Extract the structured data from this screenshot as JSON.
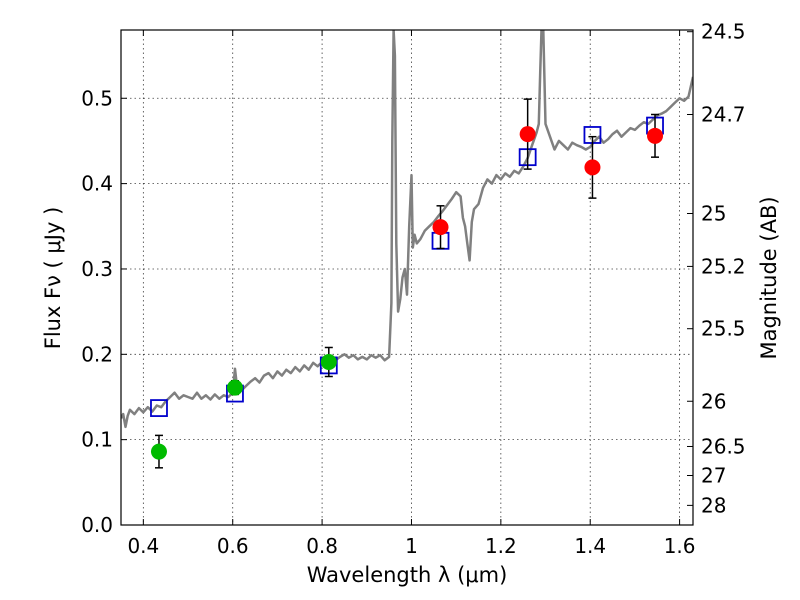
{
  "chart_data": {
    "type": "scatter",
    "xlabel": "Wavelength  λ (μm)",
    "ylabel": "Flux  Fν  ( μJy )",
    "ylabel_right": "Magnitude (AB)",
    "xlim": [
      0.35,
      1.63
    ],
    "ylim": [
      0.0,
      0.58
    ],
    "x_ticks": [
      0.4,
      0.6,
      0.8,
      1.0,
      1.2,
      1.4,
      1.6
    ],
    "x_tick_labels": [
      "0.4",
      "0.6",
      "0.8",
      "1",
      "1.2",
      "1.4",
      "1.6"
    ],
    "y_ticks": [
      0.0,
      0.1,
      0.2,
      0.3,
      0.4,
      0.5
    ],
    "y_tick_labels": [
      "0.0",
      "0.1",
      "0.2",
      "0.3",
      "0.4",
      "0.5"
    ],
    "right_ticks": [
      {
        "label": "24.5",
        "flux": 0.578
      },
      {
        "label": "24.7",
        "flux": 0.481
      },
      {
        "label": "25",
        "flux": 0.365
      },
      {
        "label": "25.2",
        "flux": 0.303
      },
      {
        "label": "25.5",
        "flux": 0.23
      },
      {
        "label": "26",
        "flux": 0.145
      },
      {
        "label": "26.5",
        "flux": 0.092
      },
      {
        "label": "27",
        "flux": 0.058
      },
      {
        "label": "28",
        "flux": 0.023
      }
    ],
    "grid": true,
    "colors": {
      "spectrum": "#808080",
      "green_points": "#00bb00",
      "red_points": "#ff0000",
      "model_boxes": "#0000cc",
      "errorbars": "#000000"
    },
    "series": [
      {
        "kind": "line",
        "points": [
          [
            0.35,
            0.125
          ],
          [
            0.355,
            0.13
          ],
          [
            0.36,
            0.115
          ],
          [
            0.365,
            0.128
          ],
          [
            0.37,
            0.135
          ],
          [
            0.38,
            0.13
          ],
          [
            0.39,
            0.137
          ],
          [
            0.4,
            0.132
          ],
          [
            0.41,
            0.138
          ],
          [
            0.42,
            0.133
          ],
          [
            0.43,
            0.14
          ],
          [
            0.44,
            0.138
          ],
          [
            0.45,
            0.145
          ],
          [
            0.46,
            0.15
          ],
          [
            0.47,
            0.155
          ],
          [
            0.48,
            0.148
          ],
          [
            0.49,
            0.152
          ],
          [
            0.5,
            0.15
          ],
          [
            0.51,
            0.148
          ],
          [
            0.52,
            0.155
          ],
          [
            0.53,
            0.148
          ],
          [
            0.54,
            0.152
          ],
          [
            0.55,
            0.147
          ],
          [
            0.56,
            0.153
          ],
          [
            0.57,
            0.148
          ],
          [
            0.58,
            0.152
          ],
          [
            0.59,
            0.15
          ],
          [
            0.6,
            0.155
          ],
          [
            0.605,
            0.183
          ],
          [
            0.61,
            0.16
          ],
          [
            0.62,
            0.158
          ],
          [
            0.63,
            0.163
          ],
          [
            0.64,
            0.168
          ],
          [
            0.65,
            0.172
          ],
          [
            0.66,
            0.167
          ],
          [
            0.67,
            0.175
          ],
          [
            0.68,
            0.178
          ],
          [
            0.69,
            0.172
          ],
          [
            0.7,
            0.18
          ],
          [
            0.71,
            0.175
          ],
          [
            0.72,
            0.182
          ],
          [
            0.73,
            0.178
          ],
          [
            0.74,
            0.185
          ],
          [
            0.75,
            0.18
          ],
          [
            0.76,
            0.187
          ],
          [
            0.77,
            0.182
          ],
          [
            0.78,
            0.19
          ],
          [
            0.79,
            0.186
          ],
          [
            0.8,
            0.191
          ],
          [
            0.81,
            0.193
          ],
          [
            0.82,
            0.196
          ],
          [
            0.83,
            0.193
          ],
          [
            0.84,
            0.197
          ],
          [
            0.85,
            0.2
          ],
          [
            0.86,
            0.196
          ],
          [
            0.87,
            0.199
          ],
          [
            0.88,
            0.194
          ],
          [
            0.89,
            0.197
          ],
          [
            0.9,
            0.194
          ],
          [
            0.91,
            0.199
          ],
          [
            0.92,
            0.196
          ],
          [
            0.93,
            0.199
          ],
          [
            0.94,
            0.193
          ],
          [
            0.95,
            0.197
          ],
          [
            0.955,
            0.26
          ],
          [
            0.957,
            0.45
          ],
          [
            0.96,
            0.58
          ],
          [
            0.963,
            0.55
          ],
          [
            0.966,
            0.33
          ],
          [
            0.97,
            0.25
          ],
          [
            0.975,
            0.265
          ],
          [
            0.98,
            0.29
          ],
          [
            0.985,
            0.3
          ],
          [
            0.99,
            0.27
          ],
          [
            0.995,
            0.35
          ],
          [
            1.0,
            0.41
          ],
          [
            1.003,
            0.325
          ],
          [
            1.007,
            0.34
          ],
          [
            1.012,
            0.33
          ],
          [
            1.02,
            0.335
          ],
          [
            1.03,
            0.345
          ],
          [
            1.04,
            0.35
          ],
          [
            1.05,
            0.355
          ],
          [
            1.06,
            0.362
          ],
          [
            1.07,
            0.368
          ],
          [
            1.08,
            0.375
          ],
          [
            1.09,
            0.382
          ],
          [
            1.1,
            0.39
          ],
          [
            1.11,
            0.385
          ],
          [
            1.115,
            0.36
          ],
          [
            1.12,
            0.35
          ],
          [
            1.125,
            0.33
          ],
          [
            1.13,
            0.31
          ],
          [
            1.135,
            0.355
          ],
          [
            1.14,
            0.37
          ],
          [
            1.15,
            0.376
          ],
          [
            1.16,
            0.395
          ],
          [
            1.17,
            0.405
          ],
          [
            1.18,
            0.4
          ],
          [
            1.19,
            0.41
          ],
          [
            1.2,
            0.405
          ],
          [
            1.21,
            0.412
          ],
          [
            1.22,
            0.408
          ],
          [
            1.23,
            0.415
          ],
          [
            1.24,
            0.412
          ],
          [
            1.25,
            0.42
          ],
          [
            1.26,
            0.43
          ],
          [
            1.27,
            0.445
          ],
          [
            1.28,
            0.46
          ],
          [
            1.285,
            0.47
          ],
          [
            1.288,
            0.53
          ],
          [
            1.291,
            0.58
          ],
          [
            1.295,
            0.58
          ],
          [
            1.3,
            0.47
          ],
          [
            1.31,
            0.455
          ],
          [
            1.32,
            0.44
          ],
          [
            1.33,
            0.45
          ],
          [
            1.34,
            0.445
          ],
          [
            1.35,
            0.44
          ],
          [
            1.36,
            0.448
          ],
          [
            1.37,
            0.445
          ],
          [
            1.38,
            0.443
          ],
          [
            1.39,
            0.44
          ],
          [
            1.4,
            0.443
          ],
          [
            1.41,
            0.45
          ],
          [
            1.42,
            0.455
          ],
          [
            1.43,
            0.448
          ],
          [
            1.44,
            0.452
          ],
          [
            1.45,
            0.458
          ],
          [
            1.46,
            0.462
          ],
          [
            1.47,
            0.455
          ],
          [
            1.48,
            0.46
          ],
          [
            1.49,
            0.465
          ],
          [
            1.5,
            0.463
          ],
          [
            1.51,
            0.468
          ],
          [
            1.52,
            0.472
          ],
          [
            1.53,
            0.47
          ],
          [
            1.54,
            0.475
          ],
          [
            1.55,
            0.48
          ],
          [
            1.56,
            0.482
          ],
          [
            1.57,
            0.485
          ],
          [
            1.58,
            0.49
          ],
          [
            1.59,
            0.495
          ],
          [
            1.6,
            0.5
          ],
          [
            1.61,
            0.497
          ],
          [
            1.62,
            0.502
          ],
          [
            1.63,
            0.525
          ]
        ]
      },
      {
        "kind": "boxes",
        "points": [
          [
            0.435,
            0.137
          ],
          [
            0.605,
            0.154
          ],
          [
            0.815,
            0.187
          ],
          [
            1.065,
            0.333
          ],
          [
            1.26,
            0.431
          ],
          [
            1.405,
            0.457
          ],
          [
            1.545,
            0.468
          ]
        ]
      },
      {
        "kind": "points_green",
        "points": [
          {
            "x": 0.435,
            "y": 0.086,
            "err": 0.019
          },
          {
            "x": 0.605,
            "y": 0.161,
            "err": 0.008
          },
          {
            "x": 0.815,
            "y": 0.191,
            "err": 0.017
          }
        ]
      },
      {
        "kind": "points_red",
        "points": [
          {
            "x": 1.065,
            "y": 0.349,
            "err": 0.025
          },
          {
            "x": 1.26,
            "y": 0.458,
            "err": 0.041
          },
          {
            "x": 1.405,
            "y": 0.419,
            "err": 0.036
          },
          {
            "x": 1.545,
            "y": 0.456,
            "err": 0.025
          }
        ]
      }
    ]
  }
}
